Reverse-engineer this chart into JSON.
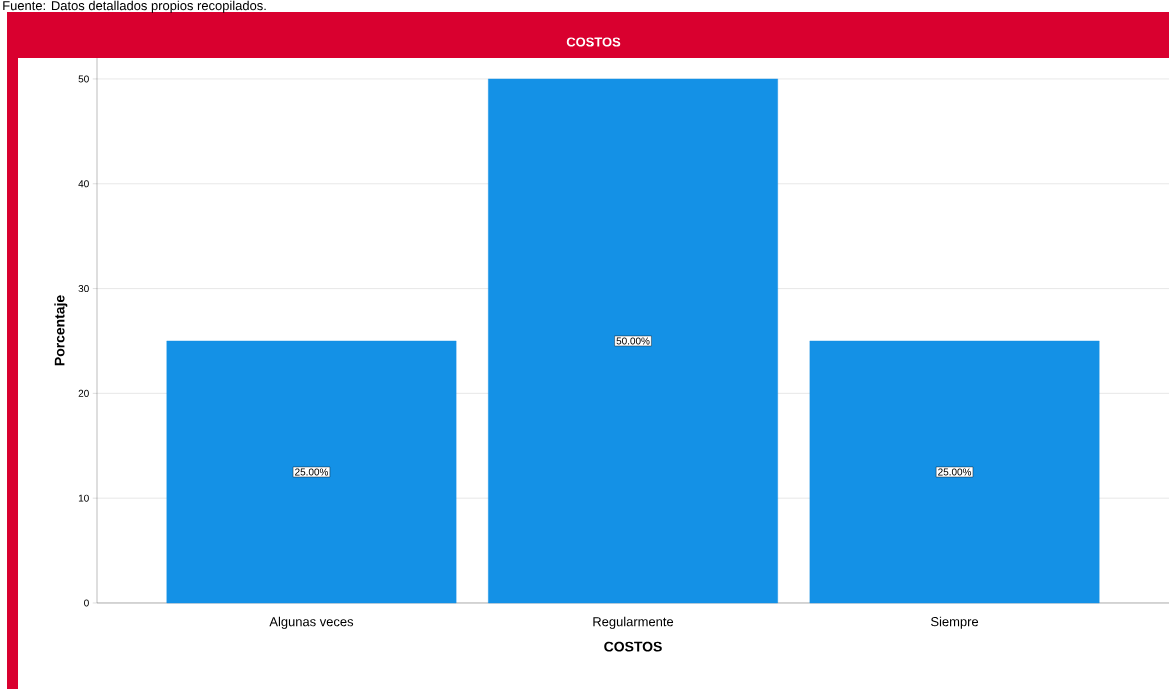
{
  "chart_data": {
    "type": "bar",
    "title": "COSTOS",
    "xlabel": "COSTOS",
    "ylabel": "Porcentaje",
    "categories": [
      "Algunas veces",
      "Regularmente",
      "Siempre"
    ],
    "values": [
      25,
      50,
      25
    ],
    "color": "#1491e6",
    "value_labels": [
      "25.00%",
      "50.00%",
      "25.00%"
    ],
    "ylim": [
      0,
      52
    ],
    "yticks": [
      0,
      10,
      20,
      30,
      40,
      50
    ],
    "grid": "y",
    "annotations": [
      "Fuente: Datos detallados propios recopilados."
    ]
  }
}
